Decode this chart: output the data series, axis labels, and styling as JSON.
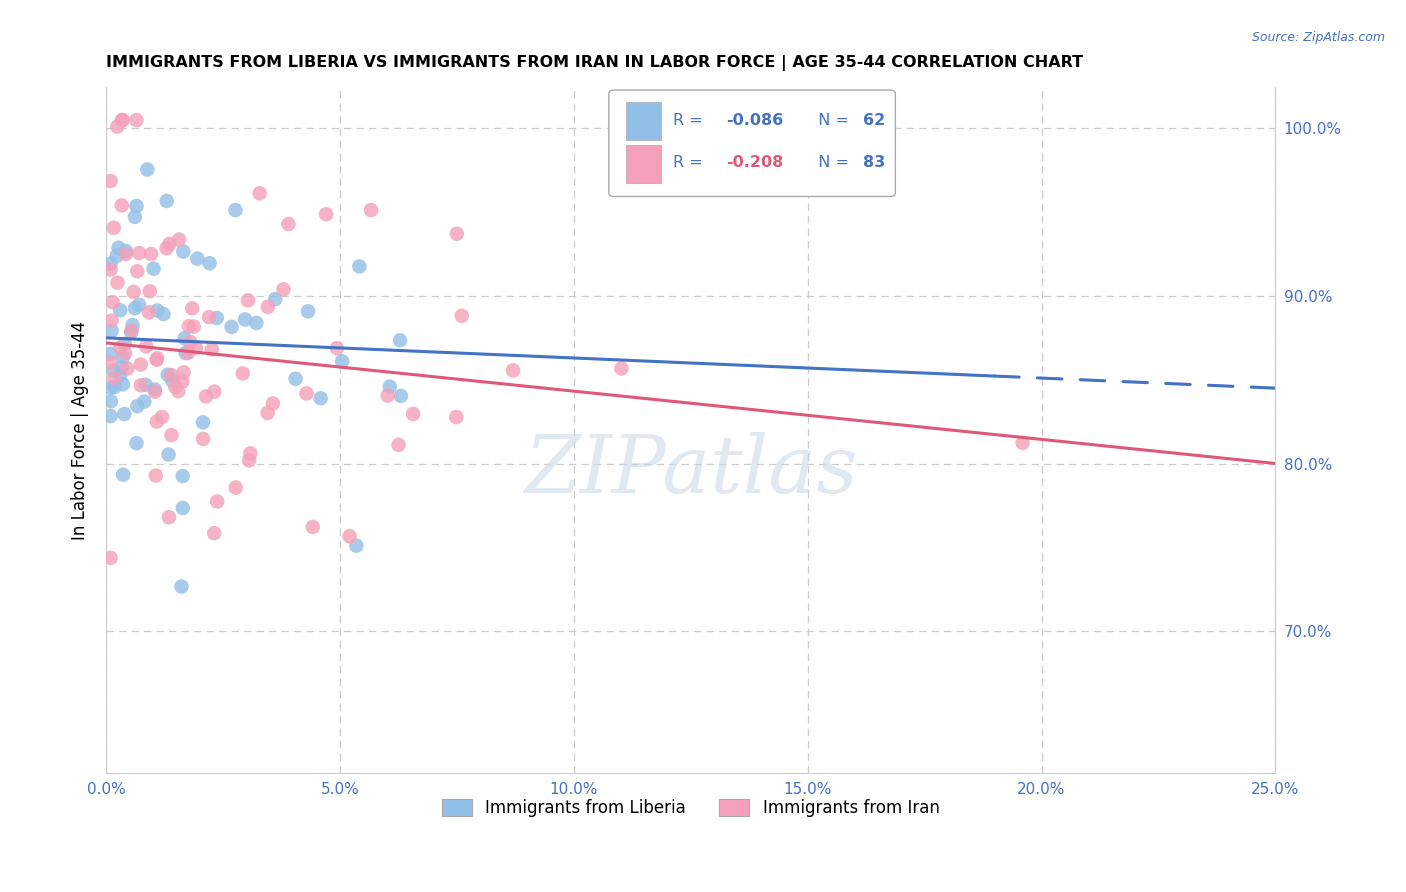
{
  "title": "IMMIGRANTS FROM LIBERIA VS IMMIGRANTS FROM IRAN IN LABOR FORCE | AGE 35-44 CORRELATION CHART",
  "source": "Source: ZipAtlas.com",
  "ylabel": "In Labor Force | Age 35-44",
  "xlim": [
    0.0,
    0.25
  ],
  "ylim": [
    0.615,
    1.025
  ],
  "xticks": [
    0.0,
    0.05,
    0.1,
    0.15,
    0.2,
    0.25
  ],
  "xticklabels": [
    "0.0%",
    "5.0%",
    "10.0%",
    "15.0%",
    "20.0%",
    "25.0%"
  ],
  "yticks_right": [
    0.7,
    0.8,
    0.9,
    1.0
  ],
  "yticklabels_right": [
    "70.0%",
    "80.0%",
    "90.0%",
    "100.0%"
  ],
  "grid_color": "#cccccc",
  "background_color": "#ffffff",
  "liberia_color": "#92BFE8",
  "iran_color": "#F4A0B8",
  "liberia_R": -0.086,
  "liberia_N": 62,
  "iran_R": -0.208,
  "iran_N": 83,
  "trend_liberia_color": "#4472C4",
  "trend_iran_color": "#E05878",
  "watermark": "ZIPatlas",
  "legend_R_color": "#4472C4",
  "legend_N_color": "#4472C4",
  "trend_lib_x0": 0.0,
  "trend_lib_y0": 0.875,
  "trend_lib_x1": 0.25,
  "trend_lib_y1": 0.845,
  "trend_lib_solid_end": 0.19,
  "trend_iran_x0": 0.0,
  "trend_iran_y0": 0.872,
  "trend_iran_x1": 0.25,
  "trend_iran_y1": 0.8
}
